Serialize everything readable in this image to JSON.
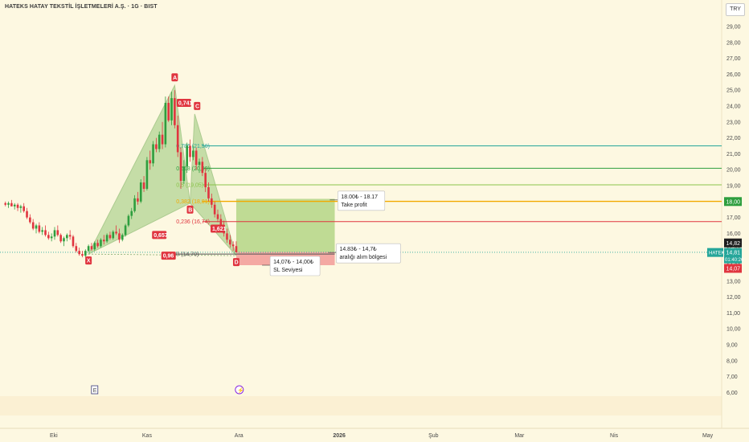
{
  "header": {
    "title": "HATEKS HATAY TEKSTİL İŞLETMELERİ A.Ş. · 1G · BIST",
    "currency": "TRY"
  },
  "colors": {
    "bull": "#2e9e3e",
    "bear": "#e0353f",
    "pattern_fill": "#98c878",
    "profit_zone": "#a9d27a",
    "stop_zone": "#f29b98",
    "price_line": "#26a69a",
    "fib_high": "#26a69a",
    "fib_mid": "#2e9e3e",
    "fib_low": "#8bc34a",
    "fib_target": "#f2a900",
    "fib_bottom": "#e0353f"
  },
  "chart_data": {
    "type": "candlestick",
    "y_ticks": [
      "29,00",
      "28,00",
      "27,00",
      "26,00",
      "25,00",
      "24,00",
      "23,00",
      "22,00",
      "21,00",
      "20,00",
      "19,00",
      "18,00",
      "17,00",
      "16,00",
      "15,00",
      "14,00",
      "13,00",
      "12,00",
      "11,00",
      "10,00",
      "9,00",
      "8,00",
      "7,00",
      "6,00"
    ],
    "ylim": [
      6.0,
      29.5
    ],
    "x_ticks": [
      {
        "label": "Eki",
        "x": 0
      },
      {
        "label": "Kas",
        "x": 30
      },
      {
        "label": "Ara",
        "x": 60
      },
      {
        "label": "2026",
        "x": 92
      },
      {
        "label": "Şub",
        "x": 123
      },
      {
        "label": "Mar",
        "x": 151
      },
      {
        "label": "Nis",
        "x": 182
      },
      {
        "label": "May",
        "x": 212
      }
    ],
    "xlim": [
      -17,
      237
    ],
    "candles": [
      [
        -16,
        17.9,
        18.0,
        17.7,
        17.8
      ],
      [
        -15,
        17.8,
        18.0,
        17.6,
        17.9
      ],
      [
        -14,
        17.9,
        18.1,
        17.7,
        17.7
      ],
      [
        -13,
        17.7,
        17.9,
        17.5,
        17.8
      ],
      [
        -12,
        17.8,
        17.9,
        17.4,
        17.6
      ],
      [
        -11,
        17.6,
        17.8,
        17.3,
        17.7
      ],
      [
        -10,
        17.7,
        17.9,
        17.3,
        17.4
      ],
      [
        -9,
        17.4,
        17.6,
        16.9,
        17.0
      ],
      [
        -8,
        17.0,
        17.2,
        16.6,
        16.7
      ],
      [
        -7,
        16.7,
        16.9,
        16.2,
        16.3
      ],
      [
        -6,
        16.3,
        16.6,
        16.0,
        16.5
      ],
      [
        -5,
        16.5,
        16.7,
        16.0,
        16.1
      ],
      [
        -4,
        16.1,
        16.4,
        15.9,
        16.2
      ],
      [
        -3,
        16.2,
        16.5,
        15.8,
        15.9
      ],
      [
        -2,
        15.9,
        16.1,
        15.6,
        15.7
      ],
      [
        -1,
        15.7,
        16.0,
        15.5,
        15.8
      ],
      [
        0,
        15.8,
        16.4,
        15.6,
        16.2
      ],
      [
        1,
        16.2,
        16.5,
        15.8,
        15.9
      ],
      [
        2,
        15.9,
        16.0,
        15.4,
        15.5
      ],
      [
        3,
        15.5,
        15.8,
        15.2,
        15.7
      ],
      [
        4,
        15.7,
        16.0,
        15.5,
        15.9
      ],
      [
        5,
        15.9,
        16.2,
        15.6,
        15.8
      ],
      [
        6,
        15.8,
        15.9,
        15.1,
        15.2
      ],
      [
        7,
        15.2,
        15.4,
        14.8,
        14.9
      ],
      [
        8,
        14.9,
        15.1,
        14.6,
        14.7
      ],
      [
        9,
        14.7,
        14.9,
        14.5,
        14.6
      ],
      [
        10,
        14.6,
        15.0,
        14.5,
        14.9
      ],
      [
        11,
        14.9,
        15.3,
        14.8,
        15.2
      ],
      [
        12,
        15.2,
        15.4,
        14.9,
        15.0
      ],
      [
        13,
        15.0,
        15.5,
        14.9,
        15.4
      ],
      [
        14,
        15.4,
        15.6,
        15.1,
        15.2
      ],
      [
        15,
        15.2,
        15.7,
        15.1,
        15.6
      ],
      [
        16,
        15.6,
        15.9,
        15.3,
        15.5
      ],
      [
        17,
        15.5,
        16.0,
        15.4,
        15.9
      ],
      [
        18,
        15.9,
        16.1,
        15.6,
        15.7
      ],
      [
        19,
        15.7,
        16.2,
        15.6,
        16.1
      ],
      [
        20,
        16.1,
        16.5,
        15.9,
        16.0
      ],
      [
        21,
        16.0,
        16.3,
        15.4,
        15.6
      ],
      [
        22,
        15.6,
        16.0,
        15.5,
        15.9
      ],
      [
        23,
        15.9,
        16.6,
        15.8,
        16.5
      ],
      [
        24,
        16.5,
        17.2,
        16.4,
        17.1
      ],
      [
        25,
        17.1,
        17.6,
        16.9,
        17.4
      ],
      [
        26,
        17.4,
        18.4,
        17.3,
        18.2
      ],
      [
        27,
        18.2,
        18.6,
        17.8,
        18.0
      ],
      [
        28,
        18.0,
        19.4,
        17.9,
        19.2
      ],
      [
        29,
        19.2,
        19.6,
        18.6,
        18.8
      ],
      [
        30,
        18.8,
        20.8,
        18.7,
        20.6
      ],
      [
        31,
        20.6,
        21.2,
        20.0,
        20.4
      ],
      [
        32,
        20.4,
        21.8,
        20.2,
        21.6
      ],
      [
        33,
        21.6,
        22.0,
        21.1,
        21.3
      ],
      [
        34,
        21.3,
        22.4,
        21.1,
        22.2
      ],
      [
        35,
        22.2,
        23.0,
        21.3,
        21.6
      ],
      [
        36,
        21.6,
        24.6,
        21.4,
        24.2
      ],
      [
        37,
        24.2,
        24.6,
        23.0,
        23.1
      ],
      [
        38,
        23.1,
        24.9,
        22.8,
        24.5
      ],
      [
        39,
        24.5,
        25.0,
        22.6,
        22.8
      ],
      [
        40,
        22.8,
        23.4,
        20.8,
        21.1
      ],
      [
        41,
        21.1,
        21.4,
        18.8,
        19.3
      ],
      [
        42,
        19.3,
        20.6,
        19.1,
        20.2
      ],
      [
        43,
        20.2,
        21.7,
        19.8,
        21.5
      ],
      [
        44,
        21.5,
        21.9,
        20.5,
        20.8
      ],
      [
        45,
        20.8,
        21.5,
        20.6,
        21.2
      ],
      [
        46,
        21.2,
        21.4,
        20.0,
        20.3
      ],
      [
        47,
        20.3,
        20.7,
        19.8,
        20.5
      ],
      [
        48,
        20.5,
        20.8,
        19.6,
        19.8
      ],
      [
        49,
        19.8,
        20.1,
        18.6,
        18.9
      ],
      [
        50,
        18.9,
        19.2,
        18.0,
        18.2
      ],
      [
        51,
        18.2,
        18.5,
        17.6,
        17.8
      ],
      [
        52,
        17.8,
        18.0,
        17.0,
        17.2
      ],
      [
        53,
        17.2,
        17.5,
        16.7,
        16.9
      ],
      [
        54,
        16.9,
        17.2,
        16.3,
        16.5
      ],
      [
        55,
        16.5,
        16.8,
        15.8,
        16.0
      ],
      [
        56,
        16.0,
        16.3,
        15.4,
        15.6
      ],
      [
        57,
        15.6,
        15.9,
        15.1,
        15.3
      ],
      [
        58,
        15.3,
        15.5,
        14.9,
        15.2
      ],
      [
        59,
        15.2,
        15.5,
        14.8,
        14.81
      ]
    ],
    "pattern": {
      "points": [
        {
          "label": "X",
          "x": 11,
          "y": 14.7
        },
        {
          "label": "A",
          "x": 39,
          "y": 25.3
        },
        {
          "label": "B",
          "x": 44,
          "y": 17.9
        },
        {
          "label": "C",
          "x": 45.5,
          "y": 23.5
        },
        {
          "label": "D",
          "x": 59,
          "y": 14.6
        }
      ],
      "ratios": [
        {
          "text": "0,741",
          "x": 42,
          "y": 24.2
        },
        {
          "text": "0,657",
          "x": 34,
          "y": 15.9
        },
        {
          "text": "1,621",
          "x": 53,
          "y": 16.3
        },
        {
          "text": "0,96",
          "x": 37,
          "y": 14.6
        }
      ]
    },
    "fib_levels": [
      {
        "label": "0,786 (21,50)",
        "y": 21.5,
        "color": "#26a69a"
      },
      {
        "label": "0,618 (20,09)",
        "y": 20.09,
        "color": "#2e9e3e"
      },
      {
        "label": "0,5 (19,05)",
        "y": 19.05,
        "color": "#8bc34a"
      },
      {
        "label": "0,382 (18,01)",
        "y": 18.01,
        "color": "#f2a900"
      },
      {
        "label": "0,236 (16,74)",
        "y": 16.74,
        "color": "#e0353f"
      },
      {
        "label": "0 (14,70)",
        "y": 14.7,
        "color": "#555555"
      }
    ],
    "target_zone": {
      "x0": 59,
      "x1": 91,
      "y0": 14.83,
      "y1": 18.17
    },
    "stop_zone": {
      "x0": 59,
      "x1": 91,
      "y0": 14.0,
      "y1": 14.83
    },
    "annotations": [
      {
        "line1": "18.00₺ - 18.17",
        "line2": "Take profit",
        "x": 92,
        "y": 18.1
      },
      {
        "line1": "14.83₺ - 14,7₺",
        "line2": "aralığı alım bölgesi",
        "x": 91.5,
        "y": 14.8
      },
      {
        "line1": "14,07₺ - 14,00₺",
        "line2": "SL Seviyesi",
        "x": 70,
        "y": 14.0
      }
    ],
    "price_badges": [
      {
        "text": "18,00",
        "y": 18.0,
        "color": "#2e9e3e"
      },
      {
        "text": "14,82",
        "y": 15.4,
        "color": "#1f1f1f"
      },
      {
        "text": "14,81",
        "y": 14.8,
        "color": "#26a69a",
        "extra": "01:40:26",
        "symbol": "HATEK"
      },
      {
        "text": "14,07",
        "y": 13.8,
        "color": "#e0353f"
      }
    ],
    "events": [
      {
        "label": "E",
        "x": 13
      },
      {
        "label": "⚡",
        "x": 60
      }
    ]
  }
}
